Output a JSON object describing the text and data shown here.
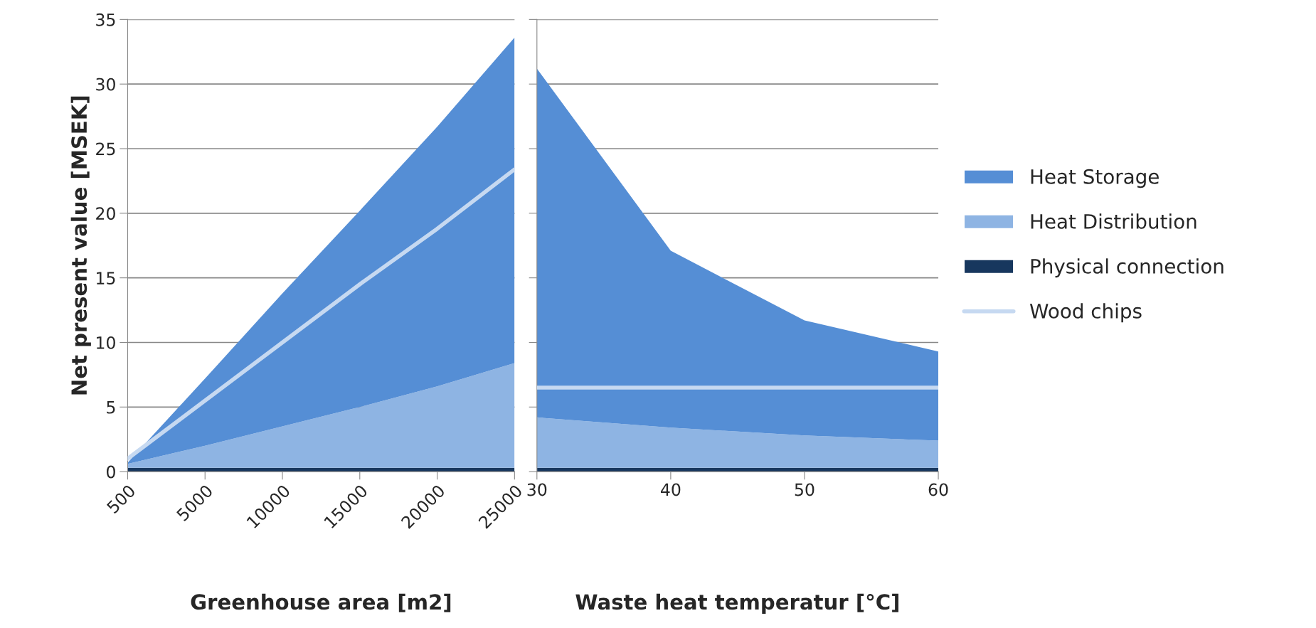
{
  "chart_data": [
    {
      "type": "area",
      "stacked": true,
      "xlabel": "Greenhouse area [m2]",
      "ylabel": "Net present value [MSEK]",
      "categories": [
        "500",
        "5000",
        "10000",
        "15000",
        "20000",
        "25000"
      ],
      "ylim": [
        0,
        35
      ],
      "yticks": [
        0,
        5,
        10,
        15,
        20,
        25,
        30,
        35
      ],
      "grid": "y",
      "legend": false,
      "series": [
        {
          "color": "#17375e",
          "values": [
            0.3,
            0.3,
            0.3,
            0.3,
            0.3,
            0.3
          ]
        },
        {
          "color": "#8eb4e3",
          "values": [
            0.3,
            1.7,
            3.2,
            4.7,
            6.3,
            8.1
          ]
        },
        {
          "color": "#558ed5",
          "values": [
            0.1,
            5.2,
            10.3,
            15.2,
            20.1,
            25.2
          ]
        },
        {
          "type": "line",
          "color": "#c6d9f1",
          "values": [
            1.0,
            5.5,
            10.0,
            14.5,
            18.8,
            23.4
          ]
        }
      ]
    },
    {
      "type": "area",
      "stacked": true,
      "xlabel": "Waste heat temperatur [°C]",
      "categories": [
        "30",
        "40",
        "50",
        "60"
      ],
      "ylim": [
        0,
        35
      ],
      "yticks": [
        0,
        5,
        10,
        15,
        20,
        25,
        30,
        35
      ],
      "grid": "y",
      "legend": "right",
      "tick_labels": "x",
      "series": [
        {
          "name": "Physical connection",
          "color": "#17375e",
          "values": [
            0.3,
            0.3,
            0.3,
            0.3
          ]
        },
        {
          "name": "Heat Distribution",
          "color": "#8eb4e3",
          "values": [
            3.9,
            3.1,
            2.5,
            2.1
          ]
        },
        {
          "name": "Heat Storage",
          "color": "#558ed5",
          "values": [
            27.0,
            13.7,
            8.9,
            6.9
          ]
        },
        {
          "name": "Wood chips",
          "type": "line",
          "color": "#c6d9f1",
          "values": [
            6.5,
            6.5,
            6.5,
            6.5
          ]
        }
      ]
    }
  ]
}
